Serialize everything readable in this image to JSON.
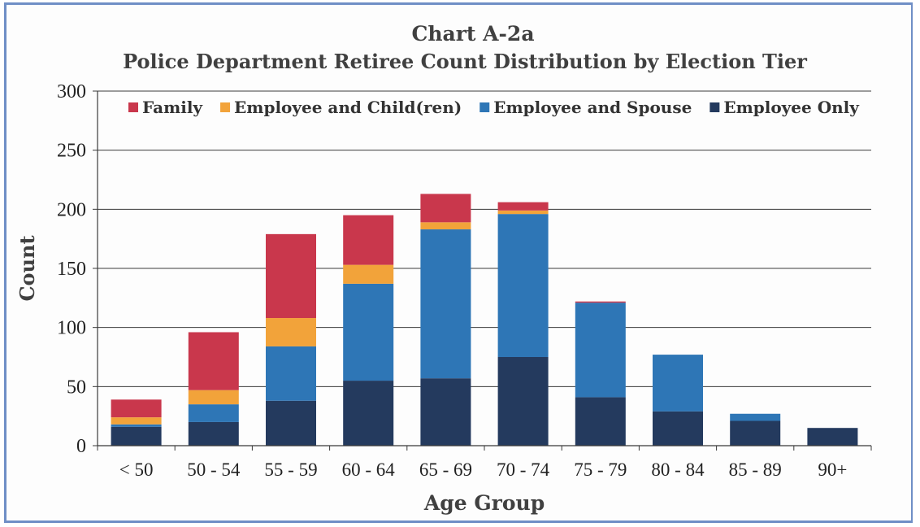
{
  "chart_data": {
    "type": "bar",
    "stacked": true,
    "title": "Chart A-2a",
    "subtitle": "Police Department Retiree Count Distribution by Election Tier",
    "xlabel": "Age Group",
    "ylabel": "Count",
    "ylim": [
      0,
      300
    ],
    "yticks": [
      "0",
      "50",
      "100",
      "150",
      "200",
      "250",
      "300"
    ],
    "grid": true,
    "legend_position": "top",
    "categories": [
      "< 50",
      "50 - 54",
      "55 - 59",
      "60 - 64",
      "65 - 69",
      "70 - 74",
      "75 - 79",
      "80 - 84",
      "85 - 89",
      "90+"
    ],
    "series": [
      {
        "name": "Employee Only",
        "color": "#243a5e",
        "values": [
          16,
          20,
          38,
          55,
          57,
          75,
          41,
          29,
          21,
          15
        ]
      },
      {
        "name": "Employee and Spouse",
        "color": "#2e76b6",
        "values": [
          2,
          15,
          46,
          82,
          126,
          121,
          80,
          48,
          6,
          0
        ]
      },
      {
        "name": "Employee and Child(ren)",
        "color": "#f2a33a",
        "values": [
          6,
          12,
          24,
          16,
          6,
          3,
          0,
          0,
          0,
          0
        ]
      },
      {
        "name": "Family",
        "color": "#c9374c",
        "values": [
          15,
          49,
          71,
          42,
          24,
          7,
          1,
          0,
          0,
          0
        ]
      }
    ],
    "legend_order": [
      "Family",
      "Employee and Child(ren)",
      "Employee and Spouse",
      "Employee Only"
    ]
  }
}
